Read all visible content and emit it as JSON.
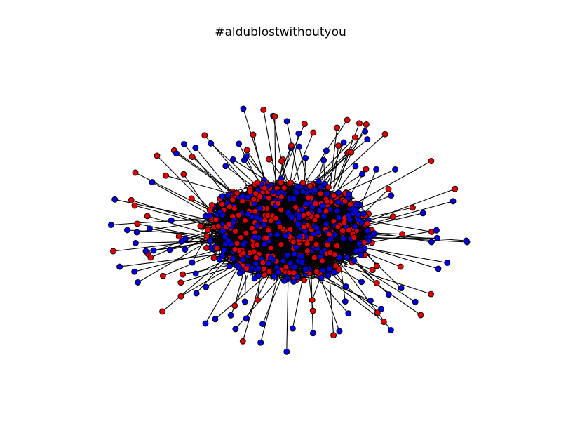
{
  "figure": {
    "title": "#aldublostwithoutyou"
  },
  "graph": {
    "node_colors": {
      "red": "#e00000",
      "blue": "#0000e0"
    },
    "node_outline_color": "#000000",
    "edge_color": "#000000",
    "layout": "force-directed, dense elliptical core with peripheral spoke nodes"
  }
}
